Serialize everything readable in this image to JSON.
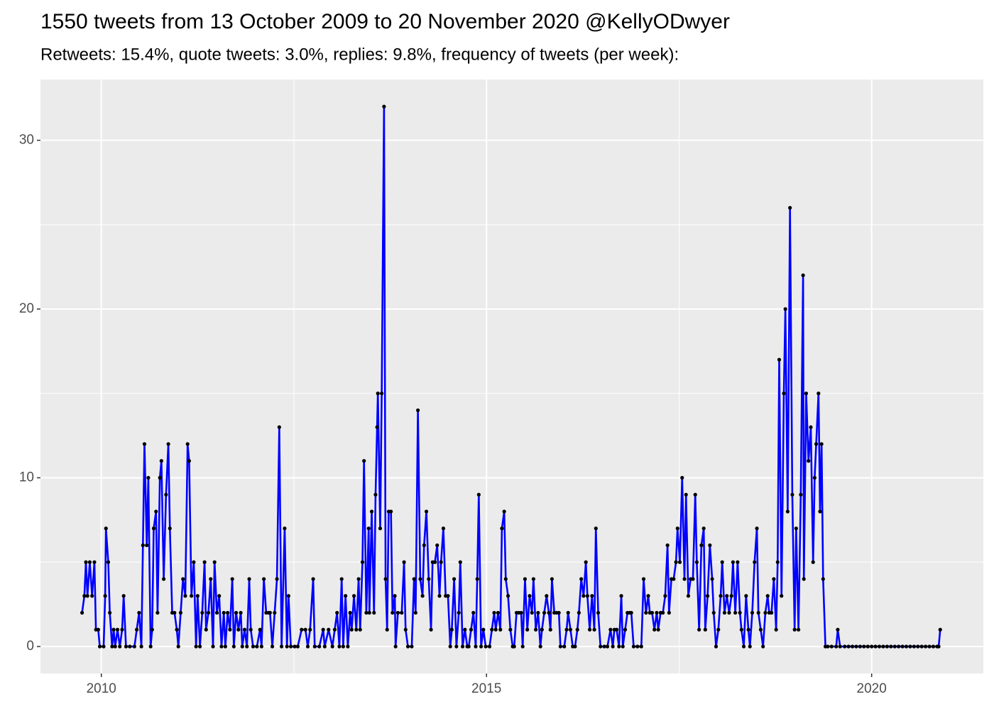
{
  "chart_data": {
    "type": "line",
    "title": "1550 tweets from 13 October 2009 to 20 November 2020 @KellyODwyer",
    "subtitle": "Retweets: 15.4%, quote tweets: 3.0%, replies: 9.8%, frequency of tweets (per week):",
    "xlim": [
      2009.21,
      2021.45
    ],
    "xticks": [
      2010,
      2015,
      2020
    ],
    "x_minor_ticks": [
      2012.5,
      2017.5
    ],
    "ylim": [
      -1.6,
      33.6
    ],
    "yticks": [
      0,
      10,
      20,
      30
    ],
    "y_minor_ticks": [
      5,
      15,
      25
    ],
    "grid": true,
    "line_color": "#0000ff",
    "point_color": "#000000",
    "x": [
      2009.75,
      2009.78,
      2009.8,
      2009.82,
      2009.85,
      2009.88,
      2009.91,
      2009.93,
      2009.96,
      2009.98,
      2010.03,
      2010.05,
      2010.06,
      2010.09,
      2010.11,
      2010.14,
      2010.16,
      2010.18,
      2010.21,
      2010.24,
      2010.27,
      2010.29,
      2010.32,
      2010.37,
      2010.43,
      2010.46,
      2010.49,
      2010.52,
      2010.54,
      2010.56,
      2010.59,
      2010.61,
      2010.64,
      2010.66,
      2010.68,
      2010.71,
      2010.73,
      2010.76,
      2010.78,
      2010.81,
      2010.84,
      2010.87,
      2010.89,
      2010.92,
      2010.95,
      2010.98,
      2011.0,
      2011.03,
      2011.06,
      2011.09,
      2011.12,
      2011.14,
      2011.17,
      2011.2,
      2011.23,
      2011.25,
      2011.28,
      2011.31,
      2011.34,
      2011.36,
      2011.39,
      2011.42,
      2011.45,
      2011.47,
      2011.5,
      2011.53,
      2011.56,
      2011.59,
      2011.61,
      2011.64,
      2011.67,
      2011.7,
      2011.72,
      2011.75,
      2011.78,
      2011.81,
      2011.83,
      2011.86,
      2011.89,
      2011.92,
      2011.94,
      2011.97,
      2012.02,
      2012.06,
      2012.08,
      2012.11,
      2012.14,
      2012.17,
      2012.19,
      2012.22,
      2012.25,
      2012.28,
      2012.31,
      2012.34,
      2012.38,
      2012.41,
      2012.43,
      2012.46,
      2012.51,
      2012.55,
      2012.6,
      2012.65,
      2012.68,
      2012.71,
      2012.75,
      2012.77,
      2012.83,
      2012.88,
      2012.9,
      2012.95,
      2013.0,
      2013.03,
      2013.06,
      2013.09,
      2013.12,
      2013.14,
      2013.17,
      2013.2,
      2013.23,
      2013.25,
      2013.28,
      2013.31,
      2013.34,
      2013.36,
      2013.39,
      2013.41,
      2013.44,
      2013.47,
      2013.48,
      2013.51,
      2013.54,
      2013.56,
      2013.58,
      2013.59,
      2013.62,
      2013.64,
      2013.67,
      2013.69,
      2013.71,
      2013.73,
      2013.76,
      2013.78,
      2013.81,
      2013.82,
      2013.85,
      2013.9,
      2013.93,
      2013.95,
      2013.98,
      2014.03,
      2014.06,
      2014.08,
      2014.11,
      2014.14,
      2014.17,
      2014.19,
      2014.22,
      2014.25,
      2014.28,
      2014.3,
      2014.33,
      2014.36,
      2014.39,
      2014.41,
      2014.44,
      2014.47,
      2014.5,
      2014.53,
      2014.55,
      2014.58,
      2014.61,
      2014.64,
      2014.66,
      2014.69,
      2014.72,
      2014.75,
      2014.77,
      2014.8,
      2014.83,
      2014.86,
      2014.88,
      2014.9,
      2014.93,
      2014.96,
      2014.99,
      2015.04,
      2015.07,
      2015.1,
      2015.12,
      2015.15,
      2015.18,
      2015.2,
      2015.23,
      2015.25,
      2015.28,
      2015.31,
      2015.34,
      2015.36,
      2015.39,
      2015.42,
      2015.45,
      2015.47,
      2015.5,
      2015.53,
      2015.56,
      2015.59,
      2015.61,
      2015.64,
      2015.67,
      2015.7,
      2015.72,
      2015.75,
      2015.78,
      2015.81,
      2015.83,
      2015.85,
      2015.88,
      2015.91,
      2015.94,
      2015.96,
      2016.01,
      2016.04,
      2016.06,
      2016.09,
      2016.12,
      2016.15,
      2016.18,
      2016.2,
      2016.23,
      2016.26,
      2016.29,
      2016.31,
      2016.34,
      2016.37,
      2016.4,
      2016.42,
      2016.45,
      2016.48,
      2016.53,
      2016.57,
      2016.61,
      2016.64,
      2016.66,
      2016.69,
      2016.72,
      2016.75,
      2016.77,
      2016.8,
      2016.83,
      2016.86,
      2016.88,
      2016.91,
      2016.96,
      2017.01,
      2017.04,
      2017.07,
      2017.1,
      2017.12,
      2017.15,
      2017.18,
      2017.21,
      2017.23,
      2017.26,
      2017.29,
      2017.32,
      2017.35,
      2017.37,
      2017.4,
      2017.43,
      2017.46,
      2017.48,
      2017.51,
      2017.54,
      2017.57,
      2017.59,
      2017.62,
      2017.65,
      2017.68,
      2017.71,
      2017.73,
      2017.76,
      2017.79,
      2017.82,
      2017.84,
      2017.87,
      2017.9,
      2017.93,
      2017.95,
      2017.98,
      2018.01,
      2018.04,
      2018.06,
      2018.09,
      2018.12,
      2018.15,
      2018.18,
      2018.2,
      2018.23,
      2018.26,
      2018.29,
      2018.31,
      2018.34,
      2018.37,
      2018.4,
      2018.42,
      2018.45,
      2018.48,
      2018.51,
      2018.53,
      2018.56,
      2018.59,
      2018.62,
      2018.65,
      2018.67,
      2018.7,
      2018.73,
      2018.76,
      2018.78,
      2018.8,
      2018.83,
      2018.86,
      2018.88,
      2018.91,
      2018.94,
      2018.97,
      2019.0,
      2019.02,
      2019.05,
      2019.08,
      2019.11,
      2019.12,
      2019.15,
      2019.18,
      2019.21,
      2019.24,
      2019.26,
      2019.28,
      2019.31,
      2019.33,
      2019.35,
      2019.37,
      2019.4,
      2019.43,
      2019.48,
      2019.54,
      2019.56,
      2019.59,
      2019.65,
      2019.7,
      2019.75,
      2019.8,
      2019.85,
      2019.9,
      2019.95,
      2020.0,
      2020.05,
      2020.1,
      2020.15,
      2020.2,
      2020.25,
      2020.3,
      2020.35,
      2020.4,
      2020.45,
      2020.5,
      2020.55,
      2020.6,
      2020.65,
      2020.7,
      2020.75,
      2020.8,
      2020.85,
      2020.87,
      2020.89
    ],
    "values": [
      2,
      3,
      5,
      3,
      5,
      3,
      5,
      1,
      1,
      0,
      0,
      3,
      7,
      5,
      2,
      0,
      1,
      0,
      1,
      0,
      1,
      3,
      0,
      0,
      0,
      1,
      2,
      0,
      6,
      12,
      6,
      10,
      0,
      1,
      7,
      8,
      2,
      10,
      11,
      4,
      9,
      12,
      7,
      2,
      2,
      1,
      0,
      2,
      4,
      3,
      12,
      11,
      3,
      5,
      0,
      3,
      0,
      2,
      5,
      1,
      2,
      4,
      0,
      5,
      2,
      3,
      0,
      2,
      0,
      2,
      1,
      4,
      0,
      2,
      1,
      2,
      0,
      1,
      0,
      4,
      1,
      0,
      0,
      1,
      0,
      4,
      2,
      2,
      2,
      0,
      2,
      4,
      13,
      0,
      7,
      0,
      3,
      0,
      0,
      0,
      1,
      1,
      0,
      1,
      4,
      0,
      0,
      1,
      0,
      1,
      0,
      1,
      2,
      0,
      4,
      0,
      3,
      0,
      2,
      1,
      3,
      1,
      4,
      1,
      5,
      11,
      2,
      7,
      2,
      8,
      2,
      9,
      13,
      15,
      7,
      15,
      32,
      4,
      1,
      8,
      8,
      2,
      3,
      0,
      2,
      2,
      5,
      1,
      0,
      0,
      4,
      2,
      14,
      4,
      3,
      6,
      8,
      4,
      1,
      5,
      5,
      6,
      3,
      5,
      7,
      3,
      3,
      0,
      1,
      4,
      0,
      2,
      5,
      0,
      1,
      0,
      0,
      1,
      2,
      0,
      4,
      9,
      0,
      1,
      0,
      0,
      1,
      2,
      1,
      2,
      1,
      7,
      8,
      4,
      3,
      1,
      0,
      0,
      2,
      2,
      2,
      0,
      4,
      1,
      3,
      2,
      4,
      1,
      2,
      0,
      1,
      2,
      3,
      2,
      1,
      4,
      2,
      2,
      2,
      0,
      0,
      1,
      2,
      1,
      0,
      0,
      1,
      2,
      4,
      3,
      5,
      3,
      1,
      3,
      1,
      7,
      2,
      0,
      0,
      0,
      1,
      0,
      1,
      1,
      0,
      3,
      0,
      1,
      2,
      2,
      2,
      0,
      0,
      0,
      4,
      2,
      3,
      2,
      2,
      1,
      2,
      1,
      2,
      2,
      3,
      6,
      2,
      4,
      4,
      5,
      7,
      5,
      10,
      4,
      9,
      3,
      4,
      4,
      9,
      5,
      1,
      6,
      7,
      1,
      3,
      6,
      4,
      2,
      0,
      1,
      3,
      5,
      2,
      3,
      2,
      3,
      5,
      2,
      5,
      2,
      1,
      0,
      3,
      1,
      0,
      2,
      5,
      7,
      2,
      1,
      0,
      2,
      3,
      2,
      2,
      4,
      1,
      5,
      17,
      3,
      15,
      20,
      8,
      26,
      9,
      1,
      7,
      1,
      9,
      22,
      4,
      15,
      11,
      13,
      5,
      10,
      12,
      15,
      8,
      12,
      4,
      0,
      0,
      0,
      0,
      1,
      0,
      0,
      0,
      0,
      0,
      0,
      0,
      0,
      0,
      0,
      0,
      0,
      0,
      0,
      0,
      0,
      0,
      0,
      0,
      0,
      0,
      0,
      0,
      0,
      0,
      0,
      0,
      1
    ]
  }
}
